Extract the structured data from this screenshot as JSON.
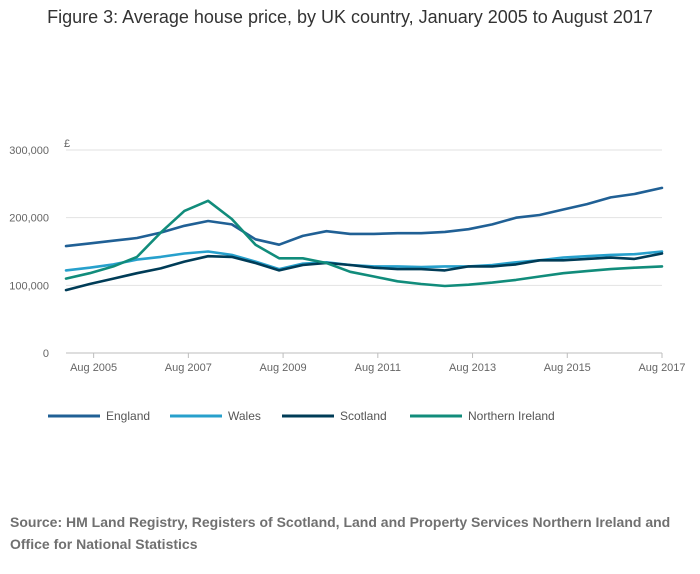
{
  "page": {
    "title": "Figure 3: Average house price, by UK country, January 2005 to August 2017",
    "source": "Source: HM Land Registry, Registers of Scotland, Land and Property Services Northern Ireland and Office for National Statistics"
  },
  "chart_data": {
    "type": "line",
    "title": "Figure 3: Average house price, by UK country, January 2005 to August 2017",
    "xlabel": "",
    "ylabel": "£",
    "xlim": [
      "2005-01",
      "2017-08"
    ],
    "ylim": [
      0,
      300000
    ],
    "yticks": [
      0,
      100000,
      200000,
      300000
    ],
    "yticklabels": [
      "0",
      "100,000",
      "200,000",
      "300,000"
    ],
    "xticks": [
      "2005-08",
      "2007-08",
      "2009-08",
      "2011-08",
      "2013-08",
      "2015-08",
      "2017-08"
    ],
    "xticklabels": [
      "Aug 2005",
      "Aug 2007",
      "Aug 2009",
      "Aug 2011",
      "Aug 2013",
      "Aug 2015",
      "Aug 2017"
    ],
    "grid": "horizontal",
    "legend": "bottom-left",
    "x": [
      "2005-01",
      "2005-07",
      "2006-01",
      "2006-07",
      "2007-01",
      "2007-07",
      "2008-01",
      "2008-07",
      "2009-01",
      "2009-07",
      "2010-01",
      "2010-07",
      "2011-01",
      "2011-07",
      "2012-01",
      "2012-07",
      "2013-01",
      "2013-07",
      "2014-01",
      "2014-07",
      "2015-01",
      "2015-07",
      "2016-01",
      "2016-07",
      "2017-01",
      "2017-08"
    ],
    "series": [
      {
        "name": "England",
        "color": "#206095",
        "values": [
          158000,
          162000,
          166000,
          170000,
          178000,
          188000,
          195000,
          190000,
          168000,
          160000,
          173000,
          180000,
          176000,
          176000,
          177000,
          177000,
          179000,
          183000,
          190000,
          200000,
          204000,
          212000,
          220000,
          230000,
          235000,
          244000
        ]
      },
      {
        "name": "Wales",
        "color": "#27a0cc",
        "values": [
          122000,
          126000,
          131000,
          138000,
          142000,
          147000,
          150000,
          145000,
          135000,
          124000,
          132000,
          134000,
          130000,
          128000,
          128000,
          127000,
          128000,
          128000,
          130000,
          134000,
          137000,
          141000,
          143000,
          145000,
          146000,
          150000
        ]
      },
      {
        "name": "Scotland",
        "color": "#003c57",
        "values": [
          93000,
          102000,
          110000,
          118000,
          125000,
          135000,
          143000,
          142000,
          133000,
          122000,
          130000,
          133000,
          130000,
          126000,
          124000,
          124000,
          122000,
          128000,
          128000,
          131000,
          137000,
          137000,
          139000,
          141000,
          139000,
          147000
        ]
      },
      {
        "name": "Northern Ireland",
        "color": "#118c7b",
        "values": [
          110000,
          118000,
          128000,
          142000,
          178000,
          210000,
          225000,
          198000,
          160000,
          140000,
          140000,
          133000,
          120000,
          113000,
          106000,
          102000,
          99000,
          101000,
          104000,
          108000,
          113000,
          118000,
          121000,
          124000,
          126000,
          128000
        ]
      }
    ]
  }
}
